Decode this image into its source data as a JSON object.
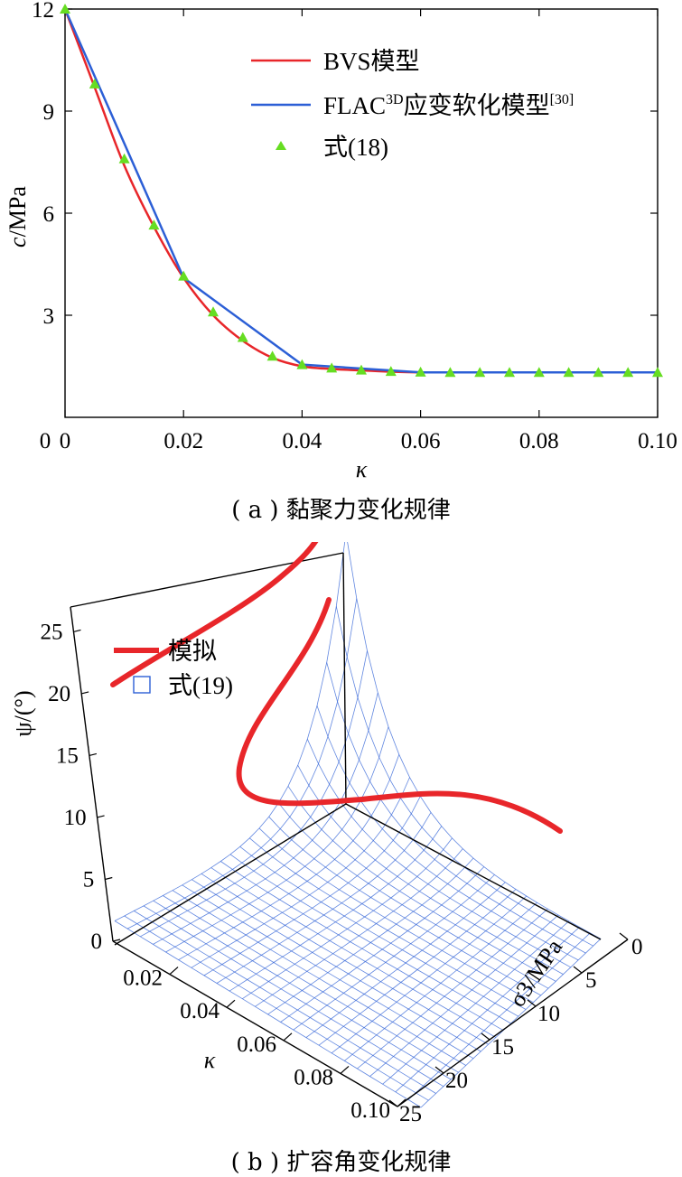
{
  "charts": [
    {
      "type": "line",
      "caption": "( a ) 黏聚力变化规律",
      "xlabel": "κ",
      "ylabel_italic": "c",
      "ylabel_rest": "/MPa",
      "xlim": [
        0,
        0.1
      ],
      "ylim": [
        0,
        12
      ],
      "xticks": [
        0,
        0.02,
        0.04,
        0.06,
        0.08,
        0.1
      ],
      "xtick_labels": [
        "0",
        "0.02",
        "0.04",
        "0.06",
        "0.08",
        "0.10"
      ],
      "yticks": [
        3,
        6,
        9,
        12
      ],
      "ytick_labels": [
        "3",
        "6",
        "9",
        "12"
      ],
      "legend_position": "top-right",
      "series": [
        {
          "name": "BVS模型",
          "color": "#e8262a",
          "x": [
            0,
            0.005,
            0.01,
            0.015,
            0.02,
            0.025,
            0.03,
            0.035,
            0.04,
            0.045,
            0.05,
            0.055,
            0.06,
            0.07,
            0.08,
            0.09,
            0.1
          ],
          "y": [
            12.0,
            9.7,
            7.4,
            5.6,
            4.1,
            3.0,
            2.25,
            1.75,
            1.5,
            1.42,
            1.38,
            1.34,
            1.32,
            1.32,
            1.32,
            1.32,
            1.32
          ]
        },
        {
          "name": "FLAC",
          "name_sup": "3D",
          "name_rest": "应变软化模型",
          "name_ref": "[30]",
          "color": "#2c5fd6",
          "x": [
            0,
            0.02,
            0.04,
            0.06,
            0.1
          ],
          "y": [
            12.0,
            4.1,
            1.55,
            1.32,
            1.32
          ]
        },
        {
          "name": "式(18)",
          "color": "#66dd22",
          "marker": "triangle",
          "x": [
            0,
            0.005,
            0.01,
            0.015,
            0.02,
            0.025,
            0.03,
            0.035,
            0.04,
            0.045,
            0.05,
            0.055,
            0.06,
            0.065,
            0.07,
            0.075,
            0.08,
            0.085,
            0.09,
            0.095,
            0.1
          ],
          "y": [
            12.0,
            9.8,
            7.6,
            5.65,
            4.15,
            3.1,
            2.35,
            1.8,
            1.55,
            1.45,
            1.39,
            1.35,
            1.33,
            1.32,
            1.32,
            1.32,
            1.32,
            1.32,
            1.32,
            1.32,
            1.32
          ]
        }
      ]
    },
    {
      "type": "surface3d",
      "caption": "( b ) 扩容角变化规律",
      "zlabel": "ψ/(°)",
      "xlabel": "κ",
      "ylabel": "σ3/MPa",
      "zticks": [
        0,
        5,
        10,
        15,
        20,
        25
      ],
      "ztick_labels": [
        "0",
        "5",
        "10",
        "15",
        "20",
        "25"
      ],
      "xtick_labels": [
        "0.02",
        "0.04",
        "0.06",
        "0.08",
        "0.10"
      ],
      "ytick_labels": [
        "0",
        "5",
        "10",
        "15",
        "20",
        "25"
      ],
      "legend_position": "top-left",
      "series": [
        {
          "name": "模拟",
          "color": "#e8262a"
        },
        {
          "name": "式(19)",
          "color": "#2c5fd6"
        }
      ]
    }
  ]
}
